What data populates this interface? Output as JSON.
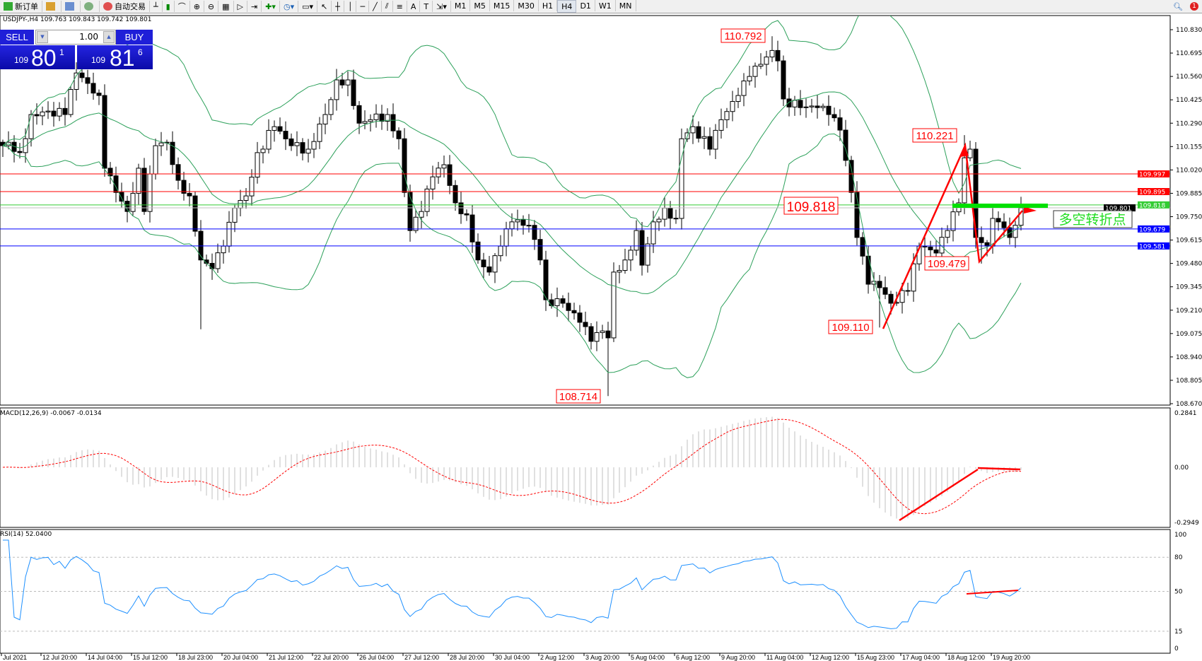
{
  "toolbar": {
    "new_order": "新订单",
    "auto_trading": "自动交易",
    "timeframes": [
      "M1",
      "M5",
      "M15",
      "M30",
      "H1",
      "H4",
      "D1",
      "W1",
      "MN"
    ],
    "active_timeframe": "H4",
    "text_tools": [
      "A",
      "T"
    ]
  },
  "symbol_info": "USDJPY-,H4  109.763 109.843 109.742 109.801",
  "trade_panel": {
    "sell_label": "SELL",
    "buy_label": "BUY",
    "lot": "1.00",
    "sell_price": {
      "small": "109",
      "big": "80",
      "pip": "1"
    },
    "buy_price": {
      "small": "109",
      "big": "81",
      "pip": "6"
    }
  },
  "price_axis": [
    "110.830",
    "110.695",
    "110.560",
    "110.425",
    "110.290",
    "110.155",
    "110.020",
    "109.885",
    "109.750",
    "109.615",
    "109.480",
    "109.345",
    "109.210",
    "109.075",
    "108.940",
    "108.805",
    "108.670"
  ],
  "hlines": [
    {
      "price": 109.997,
      "label": "109.997",
      "color": "#ff0000"
    },
    {
      "price": 109.895,
      "label": "109.895",
      "color": "#ff0000"
    },
    {
      "price": 109.818,
      "label": "109.818",
      "color": "#33cc33"
    },
    {
      "price": 109.801,
      "label": "109.801",
      "color": "#c0c0c0",
      "label_bg": "#000000"
    },
    {
      "price": 109.679,
      "label": "109.679",
      "color": "#0000ff"
    },
    {
      "price": 109.581,
      "label": "109.581",
      "color": "#0000ff"
    }
  ],
  "price_annotations": [
    {
      "text": "110.792",
      "bar": 136,
      "price": 110.792
    },
    {
      "text": "110.221",
      "bar": 170,
      "price": 110.221
    },
    {
      "text": "109.818",
      "bar": 150,
      "price": 109.818,
      "large": true
    },
    {
      "text": "109.479",
      "bar": 173,
      "price": 109.479
    },
    {
      "text": "109.110",
      "bar": 155,
      "price": 109.11
    },
    {
      "text": "108.714",
      "bar": 107,
      "price": 108.714
    }
  ],
  "callout_text": "多空转折点",
  "close_path": [
    {
      "bar": 0,
      "close": 110.16
    },
    {
      "bar": 1,
      "close": 110.18
    },
    {
      "bar": 3,
      "close": 110.12
    },
    {
      "bar": 5,
      "close": 110.34
    },
    {
      "bar": 8,
      "close": 110.36
    },
    {
      "bar": 11,
      "close": 110.34
    },
    {
      "bar": 13,
      "close": 110.58
    },
    {
      "bar": 15,
      "close": 110.52
    },
    {
      "bar": 17,
      "close": 110.45
    },
    {
      "bar": 18,
      "close": 110.03
    },
    {
      "bar": 20,
      "close": 109.89
    },
    {
      "bar": 22,
      "close": 109.78
    },
    {
      "bar": 24,
      "close": 110.03
    },
    {
      "bar": 25,
      "close": 109.78
    },
    {
      "bar": 27,
      "close": 110.16
    },
    {
      "bar": 29,
      "close": 110.18
    },
    {
      "bar": 31,
      "close": 109.96
    },
    {
      "bar": 33,
      "close": 109.87
    },
    {
      "bar": 35,
      "close": 109.5,
      "low": 109.1
    },
    {
      "bar": 37,
      "close": 109.45
    },
    {
      "bar": 39,
      "close": 109.58
    },
    {
      "bar": 41,
      "close": 109.8
    },
    {
      "bar": 43,
      "close": 109.87
    },
    {
      "bar": 45,
      "close": 110.12
    },
    {
      "bar": 48,
      "close": 110.27
    },
    {
      "bar": 51,
      "close": 110.16
    },
    {
      "bar": 54,
      "close": 110.14
    },
    {
      "bar": 57,
      "close": 110.34
    },
    {
      "bar": 59,
      "close": 110.54
    },
    {
      "bar": 61,
      "close": 110.54
    },
    {
      "bar": 63,
      "close": 110.29
    },
    {
      "bar": 65,
      "close": 110.31
    },
    {
      "bar": 68,
      "close": 110.34
    },
    {
      "bar": 70,
      "close": 110.2
    },
    {
      "bar": 71,
      "close": 109.89
    },
    {
      "bar": 72,
      "close": 109.67
    },
    {
      "bar": 74,
      "close": 109.78
    },
    {
      "bar": 76,
      "close": 109.98
    },
    {
      "bar": 78,
      "close": 110.05
    },
    {
      "bar": 80,
      "close": 109.83
    },
    {
      "bar": 82,
      "close": 109.76
    },
    {
      "bar": 84,
      "close": 109.5
    },
    {
      "bar": 86,
      "close": 109.43
    },
    {
      "bar": 88,
      "close": 109.58
    },
    {
      "bar": 90,
      "close": 109.72
    },
    {
      "bar": 93,
      "close": 109.7
    },
    {
      "bar": 95,
      "close": 109.5
    },
    {
      "bar": 96,
      "close": 109.27
    },
    {
      "bar": 99,
      "close": 109.25
    },
    {
      "bar": 102,
      "close": 109.14
    },
    {
      "bar": 104,
      "close": 109.03
    },
    {
      "bar": 106,
      "close": 109.09
    },
    {
      "bar": 107,
      "close": 109.05,
      "low": 108.714
    },
    {
      "bar": 108,
      "close": 109.43
    },
    {
      "bar": 110,
      "close": 109.5
    },
    {
      "bar": 112,
      "close": 109.67
    },
    {
      "bar": 113,
      "close": 109.47
    },
    {
      "bar": 115,
      "close": 109.72
    },
    {
      "bar": 117,
      "close": 109.8
    },
    {
      "bar": 119,
      "close": 109.74
    },
    {
      "bar": 120,
      "close": 110.2
    },
    {
      "bar": 122,
      "close": 110.27
    },
    {
      "bar": 125,
      "close": 110.14
    },
    {
      "bar": 127,
      "close": 110.31
    },
    {
      "bar": 130,
      "close": 110.45
    },
    {
      "bar": 132,
      "close": 110.56
    },
    {
      "bar": 134,
      "close": 110.63
    },
    {
      "bar": 136,
      "close": 110.71,
      "high": 110.792
    },
    {
      "bar": 137,
      "close": 110.65
    },
    {
      "bar": 138,
      "close": 110.43
    },
    {
      "bar": 141,
      "close": 110.38
    },
    {
      "bar": 144,
      "close": 110.38
    },
    {
      "bar": 146,
      "close": 110.34
    },
    {
      "bar": 148,
      "close": 110.25
    },
    {
      "bar": 150,
      "close": 109.89
    },
    {
      "bar": 151,
      "close": 109.63
    },
    {
      "bar": 153,
      "close": 109.36
    },
    {
      "bar": 155,
      "close": 109.34,
      "low": 109.11
    },
    {
      "bar": 157,
      "close": 109.25
    },
    {
      "bar": 160,
      "close": 109.32
    },
    {
      "bar": 162,
      "close": 109.58
    },
    {
      "bar": 165,
      "close": 109.54
    },
    {
      "bar": 167,
      "close": 109.67
    },
    {
      "bar": 169,
      "close": 109.83
    },
    {
      "bar": 170,
      "close": 110.09,
      "high": 110.221
    },
    {
      "bar": 171,
      "close": 110.14
    },
    {
      "bar": 172,
      "close": 109.63
    },
    {
      "bar": 173,
      "close": 109.6,
      "low": 109.479
    },
    {
      "bar": 174,
      "close": 109.58
    },
    {
      "bar": 175,
      "close": 109.74
    },
    {
      "bar": 176,
      "close": 109.72
    },
    {
      "bar": 178,
      "close": 109.63
    },
    {
      "bar": 180,
      "close": 109.8
    }
  ],
  "macd": {
    "label": "MACD(12,26,9) -0.0067 -0.0134",
    "axis": [
      "0.2841",
      "0.00",
      "-0.2949"
    ],
    "max": 0.2841,
    "min": -0.2949
  },
  "rsi": {
    "label": "RSI(14) 52.0400",
    "axis": [
      "100",
      "80",
      "50",
      "15",
      "0"
    ],
    "levels": [
      80,
      50,
      15
    ]
  },
  "time_axis": [
    "Jul 2021",
    "12 Jul 20:00",
    "14 Jul 04:00",
    "15 Jul 12:00",
    "18 Jul 23:00",
    "20 Jul 04:00",
    "21 Jul 12:00",
    "22 Jul 20:00",
    "26 Jul 04:00",
    "27 Jul 12:00",
    "28 Jul 20:00",
    "30 Jul 04:00",
    "2 Aug 12:00",
    "3 Aug 20:00",
    "5 Aug 04:00",
    "6 Aug 12:00",
    "9 Aug 20:00",
    "11 Aug 04:00",
    "12 Aug 12:00",
    "15 Aug 23:00",
    "17 Aug 04:00",
    "18 Aug 12:00",
    "19 Aug 20:00"
  ],
  "colors": {
    "bands": "#2ca05a",
    "rsi": "#1e90ff",
    "macd_hist": "#c0c0c0",
    "macd_signal": "#ff0000",
    "annotation": "#ff0000",
    "callout": "#22dd22"
  }
}
